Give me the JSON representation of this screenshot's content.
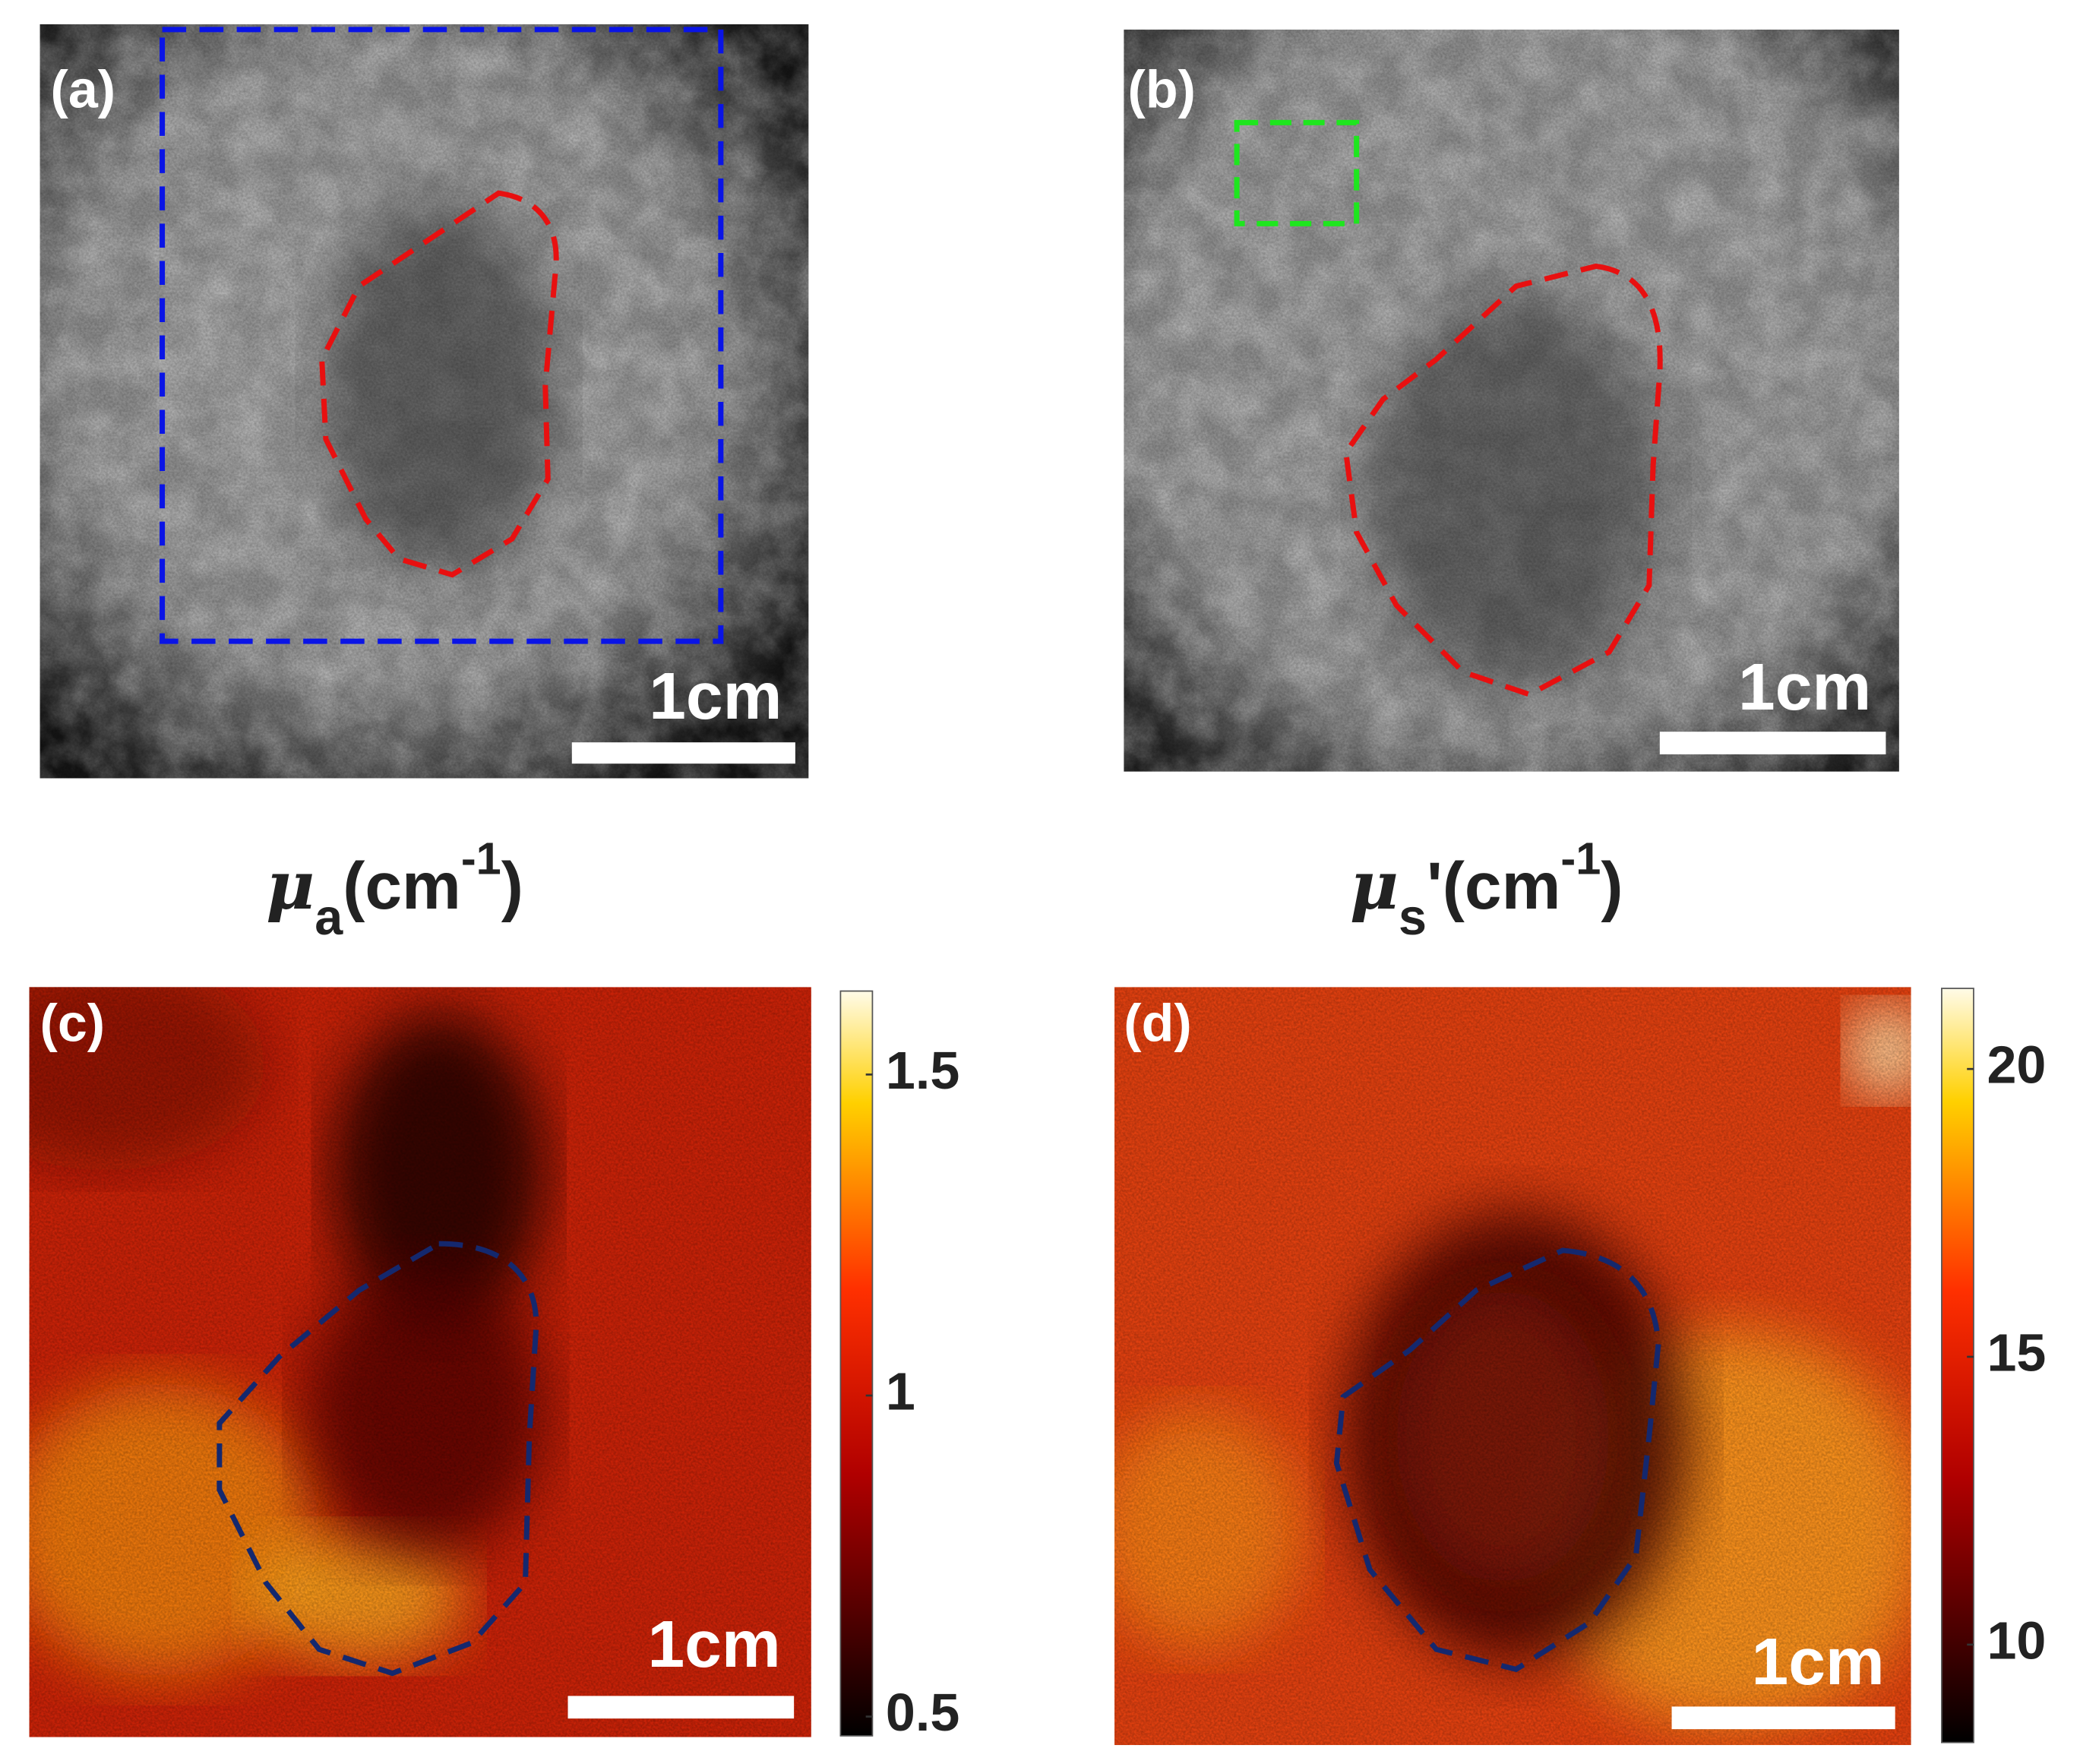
{
  "panels": [
    {
      "label": "(a)",
      "scale_bar": "1cm"
    },
    {
      "label": "(b)",
      "scale_bar": "1cm"
    },
    {
      "label": "(c)",
      "scale_bar": "1cm",
      "colorbar": {
        "lim": [
          0.47,
          1.63
        ],
        "ticks": [
          0.5,
          1,
          1.5
        ]
      }
    },
    {
      "label": "(d)",
      "scale_bar": "1cm",
      "colorbar": {
        "lim": [
          8.3,
          21.4
        ],
        "ticks": [
          10,
          15,
          20
        ]
      }
    }
  ],
  "titles": [
    {
      "symbol": "μ",
      "subscript": "a",
      "unit": "(cm",
      "exponent": "-1",
      "close": ")"
    },
    {
      "symbol": "μ",
      "subscript": "s",
      "unit": "'(cm",
      "exponent": "-1",
      "close": ")"
    }
  ]
}
